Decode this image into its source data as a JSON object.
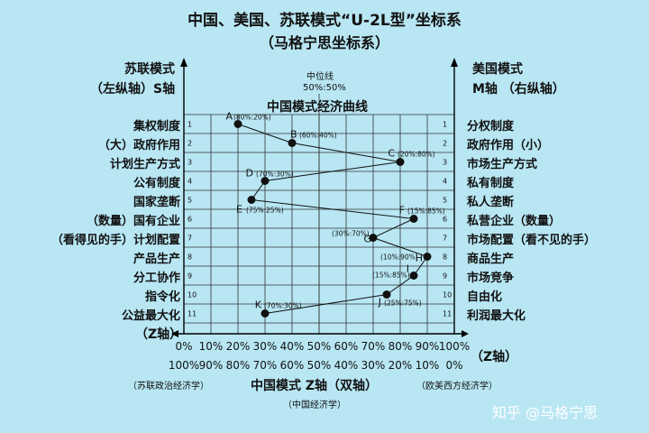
{
  "title": "中国、美国、苏联模式“U-2L型”坐标系",
  "subtitle": "（马格宁思坐标系）",
  "left_axis": {
    "title": "苏联模式",
    "subtitle": "（左纵轴）S轴",
    "z_label": "（Z轴）"
  },
  "right_axis": {
    "title": "美国模式",
    "subtitle": "M轴 （右纵轴）"
  },
  "median": {
    "label": "中位线",
    "value": "50%:50%"
  },
  "curve_title": "中国模式经济曲线",
  "bottom": {
    "z_label": "（Z轴）",
    "top_ticks": [
      "0%",
      "10%",
      "20%",
      "30%",
      "40%",
      "50%",
      "60%",
      "70%",
      "80%",
      "90%",
      "100%"
    ],
    "bottom_ticks": [
      "100%",
      "90%",
      "80%",
      "70%",
      "60%",
      "50%",
      "40%",
      "30%",
      "20%",
      "10%",
      "0%"
    ],
    "left_note": "（苏联政治经济学）",
    "center_title": "中国模式 Z轴（双轴）",
    "center_note": "（中国经济学）",
    "right_note": "（欧美西方经济学）"
  },
  "watermark": "知乎 @马格宁思",
  "rows": [
    {
      "n": "1",
      "left": "集权制度",
      "right": "分权制度"
    },
    {
      "n": "2",
      "left": "（大）政府作用",
      "right": "政府作用（小）"
    },
    {
      "n": "3",
      "left": "计划生产方式",
      "right": "市场生产方式"
    },
    {
      "n": "4",
      "left": "公有制度",
      "right": "私有制度"
    },
    {
      "n": "5",
      "left": "国家垄断",
      "right": "私人垄断"
    },
    {
      "n": "6",
      "left": "（数量）国有企业",
      "right": "私营企业（数量）"
    },
    {
      "n": "7",
      "left": "（看得见的手）计划配置",
      "right": "市场配置（看不见的手）"
    },
    {
      "n": "8",
      "left": "产品生产",
      "right": "商品生产"
    },
    {
      "n": "9",
      "left": "分工协作",
      "right": "市场竞争"
    },
    {
      "n": "10",
      "left": "指令化",
      "right": "自由化"
    },
    {
      "n": "11",
      "left": "公益最大化",
      "right": "利润最大化"
    }
  ],
  "chart_data": {
    "type": "line",
    "x_unit": "Z-axis share (M side %)",
    "xlim": [
      0,
      100
    ],
    "row_count": 11,
    "points": [
      {
        "letter": "A",
        "row": 1,
        "x": 20,
        "label": "(80%:20%)"
      },
      {
        "letter": "B",
        "row": 2,
        "x": 40,
        "label": "(60%:40%)"
      },
      {
        "letter": "C",
        "row": 3,
        "x": 80,
        "label": "(20%:80%)"
      },
      {
        "letter": "D",
        "row": 4,
        "x": 30,
        "label": "(70%:30%)"
      },
      {
        "letter": "E",
        "row": 5,
        "x": 25,
        "label": "(75%:25%)"
      },
      {
        "letter": "F",
        "row": 6,
        "x": 85,
        "label": "(15%:85%)"
      },
      {
        "letter": "G",
        "row": 7,
        "x": 70,
        "label": "(30%:70%)"
      },
      {
        "letter": "H",
        "row": 8,
        "x": 90,
        "label": "(10%:90%)"
      },
      {
        "letter": "I",
        "row": 9,
        "x": 85,
        "label": "(15%:85%)"
      },
      {
        "letter": "J",
        "row": 10,
        "x": 75,
        "label": "(25%:75%)"
      },
      {
        "letter": "K",
        "row": 11,
        "x": 30,
        "label": "(70%:30%)"
      }
    ]
  }
}
